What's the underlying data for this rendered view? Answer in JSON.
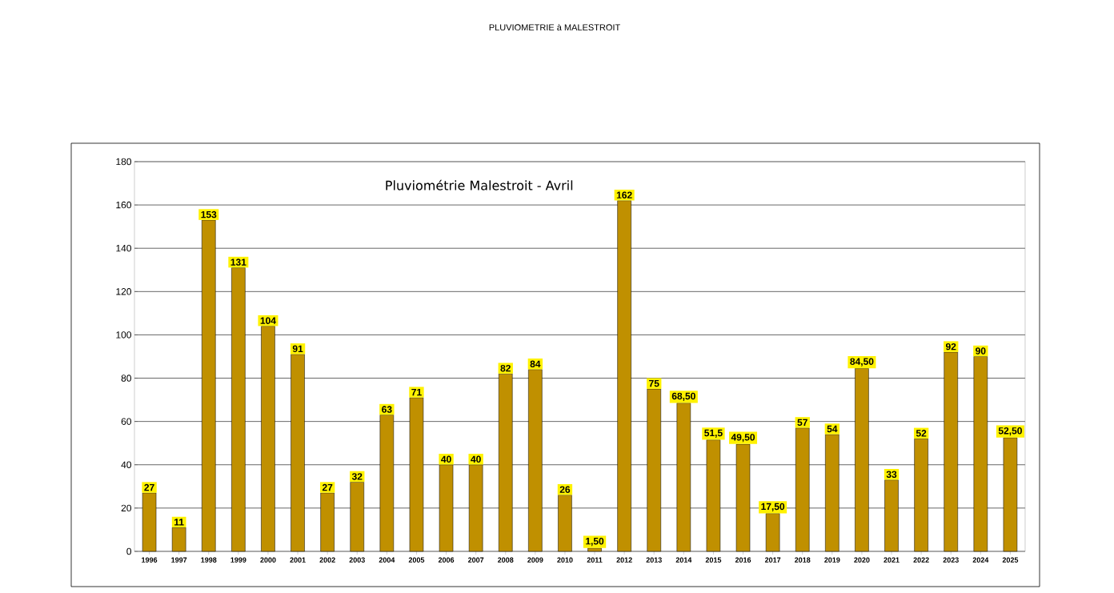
{
  "chart_data": {
    "type": "bar",
    "title": "PLUVIOMETRIE à MALESTROIT",
    "subtitle": "Pluviométrie Malestroit - Avril",
    "categories": [
      "1996",
      "1997",
      "1998",
      "1999",
      "2000",
      "2001",
      "2002",
      "2003",
      "2004",
      "2005",
      "2006",
      "2007",
      "2008",
      "2009",
      "2010",
      "2011",
      "2012",
      "2013",
      "2014",
      "2015",
      "2016",
      "2017",
      "2018",
      "2019",
      "2020",
      "2021",
      "2022",
      "2023",
      "2024",
      "2025"
    ],
    "values": [
      27,
      11,
      153,
      131,
      104,
      91,
      27,
      32,
      63,
      71,
      40,
      40,
      82,
      84,
      26,
      1.5,
      162,
      75,
      68.5,
      51.5,
      49.5,
      17.5,
      57,
      54,
      84.5,
      33,
      52,
      92,
      90,
      52.5
    ],
    "value_labels": [
      "27",
      "11",
      "153",
      "131",
      "104",
      "91",
      "27",
      "32",
      "63",
      "71",
      "40",
      "40",
      "82",
      "84",
      "26",
      "1,50",
      "162",
      "75",
      "68,50",
      "51,5",
      "49,50",
      "17,50",
      "57",
      "54",
      "84,50",
      "33",
      "52",
      "92",
      "90",
      "52,50"
    ],
    "color": "#c09000",
    "ylim": [
      0,
      180
    ],
    "yticks": [
      0,
      20,
      40,
      60,
      80,
      100,
      120,
      140,
      160,
      180
    ],
    "grid": "y"
  }
}
